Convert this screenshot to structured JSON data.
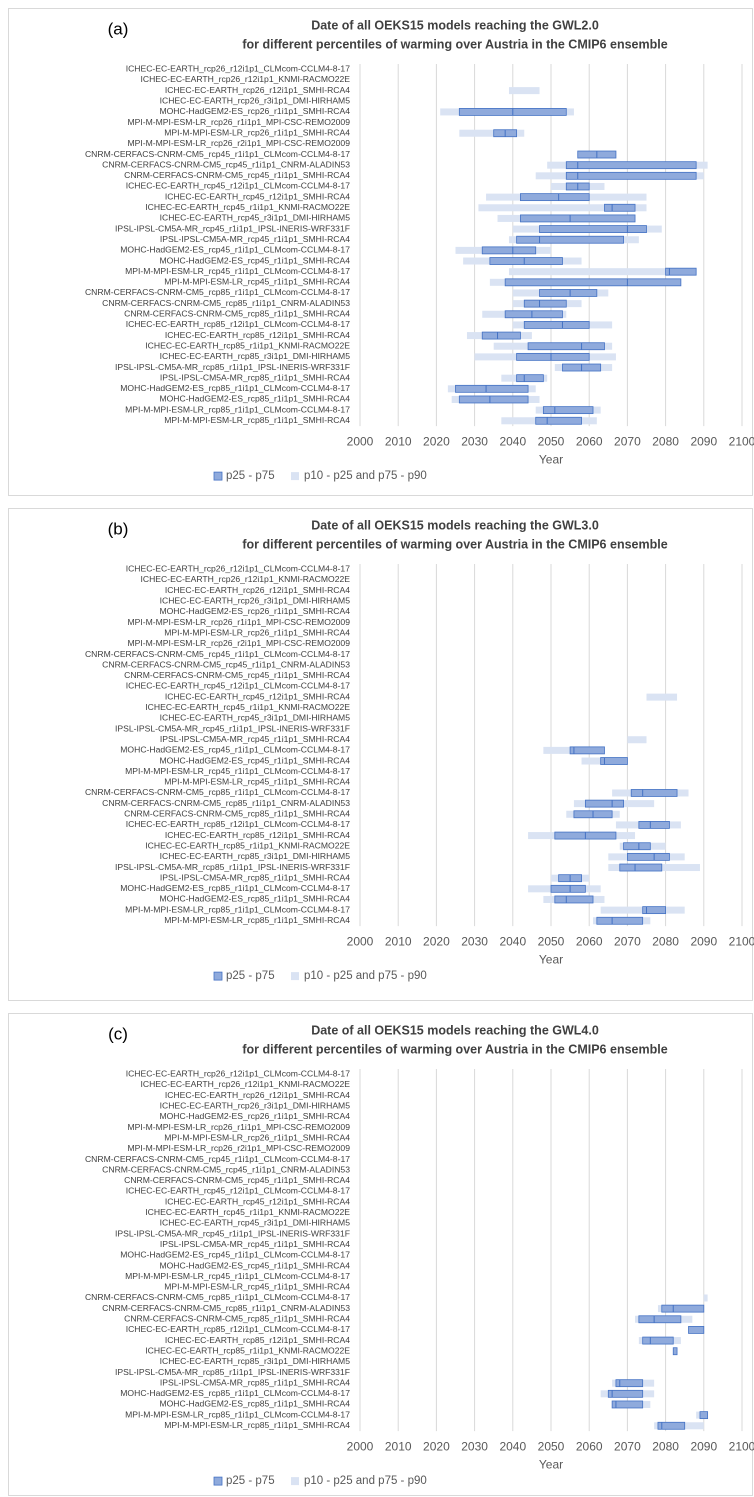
{
  "chart_data": [
    {
      "type": "floating-bar",
      "panel_label": "(a)",
      "title": "Date of all OEKS15 models reaching the GWL2.0",
      "subtitle": "for different percentiles of warming over Austria in the CMIP6 ensemble",
      "xlabel": "Year",
      "xlim": [
        2000,
        2100
      ],
      "xticks": [
        2000,
        2010,
        2020,
        2030,
        2040,
        2050,
        2060,
        2070,
        2080,
        2090,
        2100
      ],
      "grid": true,
      "categories": [
        "ICHEC-EC-EARTH_rcp26_r12i1p1_CLMcom-CCLM4-8-17",
        "ICHEC-EC-EARTH_rcp26_r12i1p1_KNMI-RACMO22E",
        "ICHEC-EC-EARTH_rcp26_r12i1p1_SMHI-RCA4",
        "ICHEC-EC-EARTH_rcp26_r3i1p1_DMI-HIRHAM5",
        "MOHC-HadGEM2-ES_rcp26_r1i1p1_SMHI-RCA4",
        "MPI-M-MPI-ESM-LR_rcp26_r1i1p1_MPI-CSC-REMO2009",
        "MPI-M-MPI-ESM-LR_rcp26_r1i1p1_SMHI-RCA4",
        "MPI-M-MPI-ESM-LR_rcp26_r2i1p1_MPI-CSC-REMO2009",
        "CNRM-CERFACS-CNRM-CM5_rcp45_r1i1p1_CLMcom-CCLM4-8-17",
        "CNRM-CERFACS-CNRM-CM5_rcp45_r1i1p1_CNRM-ALADIN53",
        "CNRM-CERFACS-CNRM-CM5_rcp45_r1i1p1_SMHI-RCA4",
        "ICHEC-EC-EARTH_rcp45_r12i1p1_CLMcom-CCLM4-8-17",
        "ICHEC-EC-EARTH_rcp45_r12i1p1_SMHI-RCA4",
        "ICHEC-EC-EARTH_rcp45_r1i1p1_KNMI-RACMO22E",
        "ICHEC-EC-EARTH_rcp45_r3i1p1_DMI-HIRHAM5",
        "IPSL-IPSL-CM5A-MR_rcp45_r1i1p1_IPSL-INERIS-WRF331F",
        "IPSL-IPSL-CM5A-MR_rcp45_r1i1p1_SMHI-RCA4",
        "MOHC-HadGEM2-ES_rcp45_r1i1p1_CLMcom-CCLM4-8-17",
        "MOHC-HadGEM2-ES_rcp45_r1i1p1_SMHI-RCA4",
        "MPI-M-MPI-ESM-LR_rcp45_r1i1p1_CLMcom-CCLM4-8-17",
        "MPI-M-MPI-ESM-LR_rcp45_r1i1p1_SMHI-RCA4",
        "CNRM-CERFACS-CNRM-CM5_rcp85_r1i1p1_CLMcom-CCLM4-8-17",
        "CNRM-CERFACS-CNRM-CM5_rcp85_r1i1p1_CNRM-ALADIN53",
        "CNRM-CERFACS-CNRM-CM5_rcp85_r1i1p1_SMHI-RCA4",
        "ICHEC-EC-EARTH_rcp85_r12i1p1_CLMcom-CCLM4-8-17",
        "ICHEC-EC-EARTH_rcp85_r12i1p1_SMHI-RCA4",
        "ICHEC-EC-EARTH_rcp85_r1i1p1_KNMI-RACMO22E",
        "ICHEC-EC-EARTH_rcp85_r3i1p1_DMI-HIRHAM5",
        "IPSL-IPSL-CM5A-MR_rcp85_r1i1p1_IPSL-INERIS-WRF331F",
        "IPSL-IPSL-CM5A-MR_rcp85_r1i1p1_SMHI-RCA4",
        "MOHC-HadGEM2-ES_rcp85_r1i1p1_CLMcom-CCLM4-8-17",
        "MOHC-HadGEM2-ES_rcp85_r1i1p1_SMHI-RCA4",
        "MPI-M-MPI-ESM-LR_rcp85_r1i1p1_CLMcom-CCLM4-8-17",
        "MPI-M-MPI-ESM-LR_rcp85_r1i1p1_SMHI-RCA4"
      ],
      "series": [
        {
          "name": "p25 - p75",
          "color": "#8faadc",
          "edge": "#4472c4",
          "low": [
            null,
            null,
            null,
            null,
            2026,
            null,
            2035,
            null,
            2057,
            2054,
            2054,
            2054,
            2042,
            2064,
            2042,
            2047,
            2041,
            2032,
            2034,
            2080,
            2038,
            2047,
            2043,
            2038,
            2043,
            2032,
            2044,
            2041,
            2053,
            2041,
            2025,
            2026,
            2048,
            2046
          ],
          "high": [
            null,
            null,
            null,
            null,
            2054,
            null,
            2041,
            null,
            2067,
            2088,
            2088,
            2060,
            2060,
            2072,
            2072,
            2075,
            2069,
            2046,
            2053,
            2088,
            2084,
            2062,
            2054,
            2053,
            2060,
            2042,
            2064,
            2060,
            2063,
            2048,
            2044,
            2044,
            2061,
            2058
          ],
          "median": [
            null,
            null,
            null,
            null,
            2040,
            null,
            2038,
            null,
            2062,
            2057,
            2057,
            2057,
            2052,
            2066,
            2055,
            2070,
            2047,
            2040,
            2043,
            2081,
            2070,
            2055,
            2047,
            2045,
            2053,
            2036,
            2058,
            2050,
            2058,
            2043,
            2033,
            2034,
            2051,
            2049
          ]
        },
        {
          "name": "p10 - p25 and p75 - p90",
          "color": "#dae3f3",
          "low": [
            null,
            null,
            2039,
            null,
            2021,
            null,
            2026,
            null,
            2057,
            2049,
            2046,
            2050,
            2033,
            2031,
            2036,
            2040,
            2039,
            2025,
            2027,
            2039,
            2034,
            2040,
            2040,
            2032,
            2040,
            2028,
            2035,
            2030,
            2051,
            2037,
            2023,
            2024,
            2046,
            2037
          ],
          "high": [
            null,
            null,
            2047,
            null,
            2056,
            null,
            2043,
            null,
            2067,
            2091,
            2090,
            2064,
            2075,
            2075,
            2072,
            2079,
            2073,
            2050,
            2058,
            2088,
            2084,
            2065,
            2058,
            2054,
            2066,
            2045,
            2066,
            2067,
            2066,
            2049,
            2046,
            2047,
            2063,
            2062
          ]
        }
      ]
    },
    {
      "type": "floating-bar",
      "panel_label": "(b)",
      "title": "Date of all OEKS15 models reaching the GWL3.0",
      "subtitle": "for different percentiles of warming over Austria in the CMIP6 ensemble",
      "xlabel": "Year",
      "xlim": [
        2000,
        2100
      ],
      "xticks": [
        2000,
        2010,
        2020,
        2030,
        2040,
        2050,
        2060,
        2070,
        2080,
        2090,
        2100
      ],
      "grid": true,
      "categories": [
        "ICHEC-EC-EARTH_rcp26_r12i1p1_CLMcom-CCLM4-8-17",
        "ICHEC-EC-EARTH_rcp26_r12i1p1_KNMI-RACMO22E",
        "ICHEC-EC-EARTH_rcp26_r12i1p1_SMHI-RCA4",
        "ICHEC-EC-EARTH_rcp26_r3i1p1_DMI-HIRHAM5",
        "MOHC-HadGEM2-ES_rcp26_r1i1p1_SMHI-RCA4",
        "MPI-M-MPI-ESM-LR_rcp26_r1i1p1_MPI-CSC-REMO2009",
        "MPI-M-MPI-ESM-LR_rcp26_r1i1p1_SMHI-RCA4",
        "MPI-M-MPI-ESM-LR_rcp26_r2i1p1_MPI-CSC-REMO2009",
        "CNRM-CERFACS-CNRM-CM5_rcp45_r1i1p1_CLMcom-CCLM4-8-17",
        "CNRM-CERFACS-CNRM-CM5_rcp45_r1i1p1_CNRM-ALADIN53",
        "CNRM-CERFACS-CNRM-CM5_rcp45_r1i1p1_SMHI-RCA4",
        "ICHEC-EC-EARTH_rcp45_r12i1p1_CLMcom-CCLM4-8-17",
        "ICHEC-EC-EARTH_rcp45_r12i1p1_SMHI-RCA4",
        "ICHEC-EC-EARTH_rcp45_r1i1p1_KNMI-RACMO22E",
        "ICHEC-EC-EARTH_rcp45_r3i1p1_DMI-HIRHAM5",
        "IPSL-IPSL-CM5A-MR_rcp45_r1i1p1_IPSL-INERIS-WRF331F",
        "IPSL-IPSL-CM5A-MR_rcp45_r1i1p1_SMHI-RCA4",
        "MOHC-HadGEM2-ES_rcp45_r1i1p1_CLMcom-CCLM4-8-17",
        "MOHC-HadGEM2-ES_rcp45_r1i1p1_SMHI-RCA4",
        "MPI-M-MPI-ESM-LR_rcp45_r1i1p1_CLMcom-CCLM4-8-17",
        "MPI-M-MPI-ESM-LR_rcp45_r1i1p1_SMHI-RCA4",
        "CNRM-CERFACS-CNRM-CM5_rcp85_r1i1p1_CLMcom-CCLM4-8-17",
        "CNRM-CERFACS-CNRM-CM5_rcp85_r1i1p1_CNRM-ALADIN53",
        "CNRM-CERFACS-CNRM-CM5_rcp85_r1i1p1_SMHI-RCA4",
        "ICHEC-EC-EARTH_rcp85_r12i1p1_CLMcom-CCLM4-8-17",
        "ICHEC-EC-EARTH_rcp85_r12i1p1_SMHI-RCA4",
        "ICHEC-EC-EARTH_rcp85_r1i1p1_KNMI-RACMO22E",
        "ICHEC-EC-EARTH_rcp85_r3i1p1_DMI-HIRHAM5",
        "IPSL-IPSL-CM5A-MR_rcp85_r1i1p1_IPSL-INERIS-WRF331F",
        "IPSL-IPSL-CM5A-MR_rcp85_r1i1p1_SMHI-RCA4",
        "MOHC-HadGEM2-ES_rcp85_r1i1p1_CLMcom-CCLM4-8-17",
        "MOHC-HadGEM2-ES_rcp85_r1i1p1_SMHI-RCA4",
        "MPI-M-MPI-ESM-LR_rcp85_r1i1p1_CLMcom-CCLM4-8-17",
        "MPI-M-MPI-ESM-LR_rcp85_r1i1p1_SMHI-RCA4"
      ],
      "series": [
        {
          "name": "p25 - p75",
          "color": "#8faadc",
          "edge": "#4472c4",
          "low": [
            null,
            null,
            null,
            null,
            null,
            null,
            null,
            null,
            null,
            null,
            null,
            null,
            null,
            null,
            null,
            null,
            null,
            2055,
            2063,
            null,
            null,
            2071,
            2059,
            2056,
            2073,
            2051,
            2069,
            2070,
            2068,
            2052,
            2050,
            2051,
            2074,
            2062
          ],
          "high": [
            null,
            null,
            null,
            null,
            null,
            null,
            null,
            null,
            null,
            null,
            null,
            null,
            null,
            null,
            null,
            null,
            null,
            2064,
            2070,
            null,
            null,
            2083,
            2069,
            2066,
            2081,
            2067,
            2076,
            2081,
            2079,
            2058,
            2059,
            2061,
            2080,
            2074
          ],
          "median": [
            null,
            null,
            null,
            null,
            null,
            null,
            null,
            null,
            null,
            null,
            null,
            null,
            null,
            null,
            null,
            null,
            null,
            2056,
            2064,
            null,
            null,
            2074,
            2066,
            2061,
            2076,
            2059,
            2073,
            2077,
            2072,
            2055,
            2055,
            2054,
            2075,
            2066
          ]
        },
        {
          "name": "p10 - p25 and p75 - p90",
          "color": "#dae3f3",
          "low": [
            null,
            null,
            null,
            null,
            null,
            null,
            null,
            null,
            null,
            null,
            null,
            null,
            2075,
            null,
            null,
            null,
            2070,
            2048,
            2058,
            null,
            null,
            2066,
            2056,
            2054,
            2067,
            2044,
            2068,
            2065,
            2065,
            2050,
            2044,
            2048,
            2063,
            2061
          ],
          "high": [
            null,
            null,
            null,
            null,
            null,
            null,
            null,
            null,
            null,
            null,
            null,
            null,
            2083,
            null,
            null,
            null,
            2075,
            2064,
            2070,
            null,
            null,
            2086,
            2077,
            2068,
            2084,
            2072,
            2080,
            2085,
            2089,
            2060,
            2063,
            2064,
            2085,
            2076
          ]
        }
      ]
    },
    {
      "type": "floating-bar",
      "panel_label": "(c)",
      "title": "Date of all OEKS15 models reaching the GWL4.0",
      "subtitle": "for different percentiles of warming over Austria in the CMIP6 ensemble",
      "xlabel": "Year",
      "xlim": [
        2000,
        2100
      ],
      "xticks": [
        2000,
        2010,
        2020,
        2030,
        2040,
        2050,
        2060,
        2070,
        2080,
        2090,
        2100
      ],
      "grid": true,
      "categories": [
        "ICHEC-EC-EARTH_rcp26_r12i1p1_CLMcom-CCLM4-8-17",
        "ICHEC-EC-EARTH_rcp26_r12i1p1_KNMI-RACMO22E",
        "ICHEC-EC-EARTH_rcp26_r12i1p1_SMHI-RCA4",
        "ICHEC-EC-EARTH_rcp26_r3i1p1_DMI-HIRHAM5",
        "MOHC-HadGEM2-ES_rcp26_r1i1p1_SMHI-RCA4",
        "MPI-M-MPI-ESM-LR_rcp26_r1i1p1_MPI-CSC-REMO2009",
        "MPI-M-MPI-ESM-LR_rcp26_r1i1p1_SMHI-RCA4",
        "MPI-M-MPI-ESM-LR_rcp26_r2i1p1_MPI-CSC-REMO2009",
        "CNRM-CERFACS-CNRM-CM5_rcp45_r1i1p1_CLMcom-CCLM4-8-17",
        "CNRM-CERFACS-CNRM-CM5_rcp45_r1i1p1_CNRM-ALADIN53",
        "CNRM-CERFACS-CNRM-CM5_rcp45_r1i1p1_SMHI-RCA4",
        "ICHEC-EC-EARTH_rcp45_r12i1p1_CLMcom-CCLM4-8-17",
        "ICHEC-EC-EARTH_rcp45_r12i1p1_SMHI-RCA4",
        "ICHEC-EC-EARTH_rcp45_r1i1p1_KNMI-RACMO22E",
        "ICHEC-EC-EARTH_rcp45_r3i1p1_DMI-HIRHAM5",
        "IPSL-IPSL-CM5A-MR_rcp45_r1i1p1_IPSL-INERIS-WRF331F",
        "IPSL-IPSL-CM5A-MR_rcp45_r1i1p1_SMHI-RCA4",
        "MOHC-HadGEM2-ES_rcp45_r1i1p1_CLMcom-CCLM4-8-17",
        "MOHC-HadGEM2-ES_rcp45_r1i1p1_SMHI-RCA4",
        "MPI-M-MPI-ESM-LR_rcp45_r1i1p1_CLMcom-CCLM4-8-17",
        "MPI-M-MPI-ESM-LR_rcp45_r1i1p1_SMHI-RCA4",
        "CNRM-CERFACS-CNRM-CM5_rcp85_r1i1p1_CLMcom-CCLM4-8-17",
        "CNRM-CERFACS-CNRM-CM5_rcp85_r1i1p1_CNRM-ALADIN53",
        "CNRM-CERFACS-CNRM-CM5_rcp85_r1i1p1_SMHI-RCA4",
        "ICHEC-EC-EARTH_rcp85_r12i1p1_CLMcom-CCLM4-8-17",
        "ICHEC-EC-EARTH_rcp85_r12i1p1_SMHI-RCA4",
        "ICHEC-EC-EARTH_rcp85_r1i1p1_KNMI-RACMO22E",
        "ICHEC-EC-EARTH_rcp85_r3i1p1_DMI-HIRHAM5",
        "IPSL-IPSL-CM5A-MR_rcp85_r1i1p1_IPSL-INERIS-WRF331F",
        "IPSL-IPSL-CM5A-MR_rcp85_r1i1p1_SMHI-RCA4",
        "MOHC-HadGEM2-ES_rcp85_r1i1p1_CLMcom-CCLM4-8-17",
        "MOHC-HadGEM2-ES_rcp85_r1i1p1_SMHI-RCA4",
        "MPI-M-MPI-ESM-LR_rcp85_r1i1p1_CLMcom-CCLM4-8-17",
        "MPI-M-MPI-ESM-LR_rcp85_r1i1p1_SMHI-RCA4"
      ],
      "series": [
        {
          "name": "p25 - p75",
          "color": "#8faadc",
          "edge": "#4472c4",
          "low": [
            null,
            null,
            null,
            null,
            null,
            null,
            null,
            null,
            null,
            null,
            null,
            null,
            null,
            null,
            null,
            null,
            null,
            null,
            null,
            null,
            null,
            null,
            2079,
            2073,
            2086,
            2074,
            2082,
            null,
            null,
            2067,
            2065,
            2066,
            2089,
            2078
          ],
          "high": [
            null,
            null,
            null,
            null,
            null,
            null,
            null,
            null,
            null,
            null,
            null,
            null,
            null,
            null,
            null,
            null,
            null,
            null,
            null,
            null,
            null,
            null,
            2090,
            2084,
            2090,
            2082,
            2083,
            null,
            null,
            2074,
            2074,
            2074,
            2091,
            2085
          ],
          "median": [
            null,
            null,
            null,
            null,
            null,
            null,
            null,
            null,
            null,
            null,
            null,
            null,
            null,
            null,
            null,
            null,
            null,
            null,
            null,
            null,
            null,
            null,
            2082,
            2077,
            null,
            2076,
            null,
            null,
            null,
            2068,
            2066,
            2067,
            null,
            2079
          ]
        },
        {
          "name": "p10 - p25 and p75 - p90",
          "color": "#dae3f3",
          "low": [
            null,
            null,
            null,
            null,
            null,
            null,
            null,
            null,
            null,
            null,
            null,
            null,
            null,
            null,
            null,
            null,
            null,
            null,
            null,
            null,
            null,
            2090,
            2078,
            2072,
            2086,
            2073,
            2082,
            null,
            null,
            2066,
            2063,
            2066,
            2088,
            2077
          ],
          "high": [
            null,
            null,
            null,
            null,
            null,
            null,
            null,
            null,
            null,
            null,
            null,
            null,
            null,
            null,
            null,
            null,
            null,
            null,
            null,
            null,
            null,
            2091,
            2090,
            2087,
            2090,
            2084,
            2083,
            null,
            null,
            2077,
            2077,
            2076,
            2091,
            2090
          ]
        }
      ]
    }
  ]
}
